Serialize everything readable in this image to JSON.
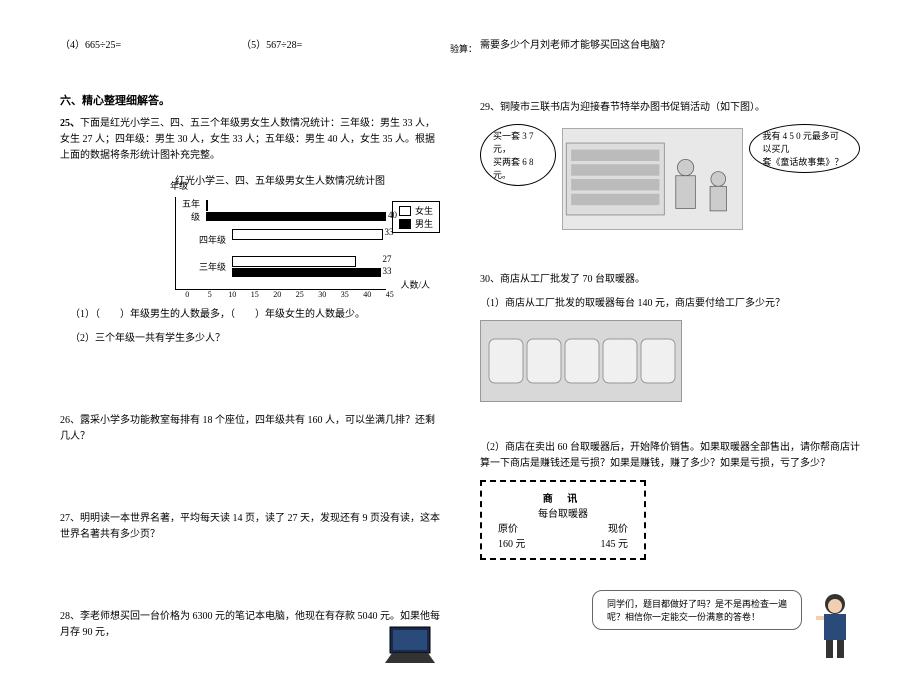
{
  "left": {
    "q4": "（4）665÷25=",
    "q5": "（5）567÷28=",
    "check": "验算：",
    "section6": "六、精心整理细解答。",
    "p25": {
      "num": "25、",
      "text": "下面是红光小学三、四、五三个年级男女生人数情况统计：三年级：男生 33 人，女生 27 人；四年级：男生 30 人，女生 33 人；五年级：男生 40 人，女生 35 人。根据上面的数据将条形统计图补充完整。",
      "chart_title": "红光小学三、四、五年级男女生人数情况统计图",
      "y_label": "年级",
      "x_label": "人数/人",
      "legend_f": "女生",
      "legend_m": "男生",
      "rows": [
        {
          "cat": "五年级",
          "m": 40,
          "f": null,
          "m_label": "40"
        },
        {
          "cat": "四年级",
          "m": null,
          "f": 33,
          "f_label": "33"
        },
        {
          "cat": "三年级",
          "m": 33,
          "f": 27,
          "m_label": "33",
          "f_label": "27"
        }
      ],
      "ticks": [
        "0",
        "5",
        "10",
        "15",
        "20",
        "25",
        "30",
        "35",
        "40",
        "45"
      ],
      "bar_scale": 4.5,
      "male_color": "#000000",
      "female_color": "#ffffff",
      "sub1": "（1）（　　）年级男生的人数最多，（　　）年级女生的人数最少。",
      "sub2": "（2）三个年级一共有学生多少人？"
    },
    "p26": "26、露采小学多功能教室每排有 18 个座位，四年级共有 160 人，可以坐满几排？还剩几人？",
    "p27": "27、明明读一本世界名著，平均每天读 14 页，读了 27 天，发现还有 9 页没有读，这本世界名著共有多少页？",
    "p28": "28、李老师想买回一台价格为 6300 元的笔记本电脑，他现在有存款 5040 元。如果他每月存 90 元，"
  },
  "right": {
    "p28b": "需要多少个月刘老师才能够买回这台电脑？",
    "p29": {
      "text": "29、铜陵市三联书店为迎接春节特举办图书促销活动（如下图）。",
      "bubble_left_l1": "买一套 3 7 元，",
      "bubble_left_l2": "买两套 6 8 元。",
      "bubble_right_l1": "我有 4 5 0 元最多可以买几",
      "bubble_right_l2": "套《童话故事集》？"
    },
    "p30": {
      "l1": "30、商店从工厂批发了 70 台取暖器。",
      "l2": "（1）商店从工厂批发的取暖器每台 140 元，商店要付给工厂多少元？",
      "l3": "（2）商店在卖出 60 台取暖器后，开始降价销售。如果取暖器全部售出，请你帮商店计算一下商店是赚钱还是亏损？如果是赚钱，赚了多少？如果是亏损，亏了多少？",
      "box": {
        "title": "商 讯",
        "sub": "每台取暖器",
        "h1": "原价",
        "h2": "现价",
        "v1": "160 元",
        "v2": "145 元"
      }
    },
    "footer": {
      "l1": "同学们，题目都做好了吗？是不是再检查一遍",
      "l2": "呢？相信你一定能交一份满意的答卷！"
    }
  }
}
